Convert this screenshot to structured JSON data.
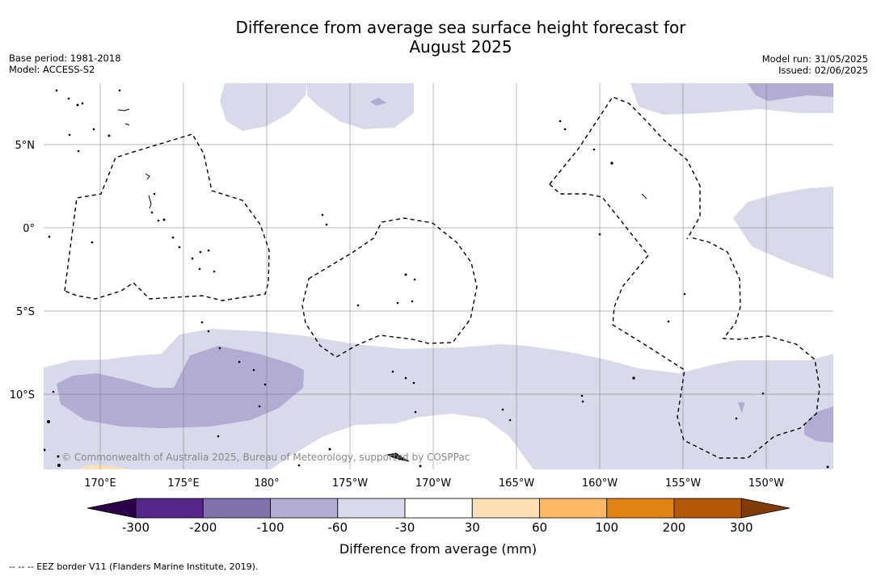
{
  "title": {
    "line1": "Difference from average sea surface height forecast for",
    "line2": "August 2025"
  },
  "info_left": {
    "base_period": "Base period: 1981-2018",
    "model": "Model: ACCESS-S2"
  },
  "info_right": {
    "model_run": "Model run: 31/05/2025",
    "issued": "Issued: 02/06/2025"
  },
  "map": {
    "lat_labels": [
      "5°N",
      "0°",
      "5°S",
      "10°S"
    ],
    "lon_labels": [
      "170°E",
      "175°E",
      "180°",
      "175°W",
      "170°W",
      "165°W",
      "160°W",
      "155°W",
      "150°W"
    ],
    "credit": "© Commonwealth of Australia 2025, Bureau of Meteorology, supported by COSPPac",
    "gridlines": true
  },
  "colorbar": {
    "label": "Difference from average (mm)",
    "ticks": [
      "-300",
      "-200",
      "-100",
      "-60",
      "-30",
      "30",
      "60",
      "100",
      "200",
      "300"
    ],
    "colors": [
      "#2d004b",
      "#542788",
      "#8073ac",
      "#b2abd2",
      "#d8daeb",
      "#ffffff",
      "#fee0b6",
      "#fdb863",
      "#e08214",
      "#b35806",
      "#7f3b08"
    ]
  },
  "footer": "--  --  -- EEZ border V11 (Flanders Marine Institute, 2019)."
}
